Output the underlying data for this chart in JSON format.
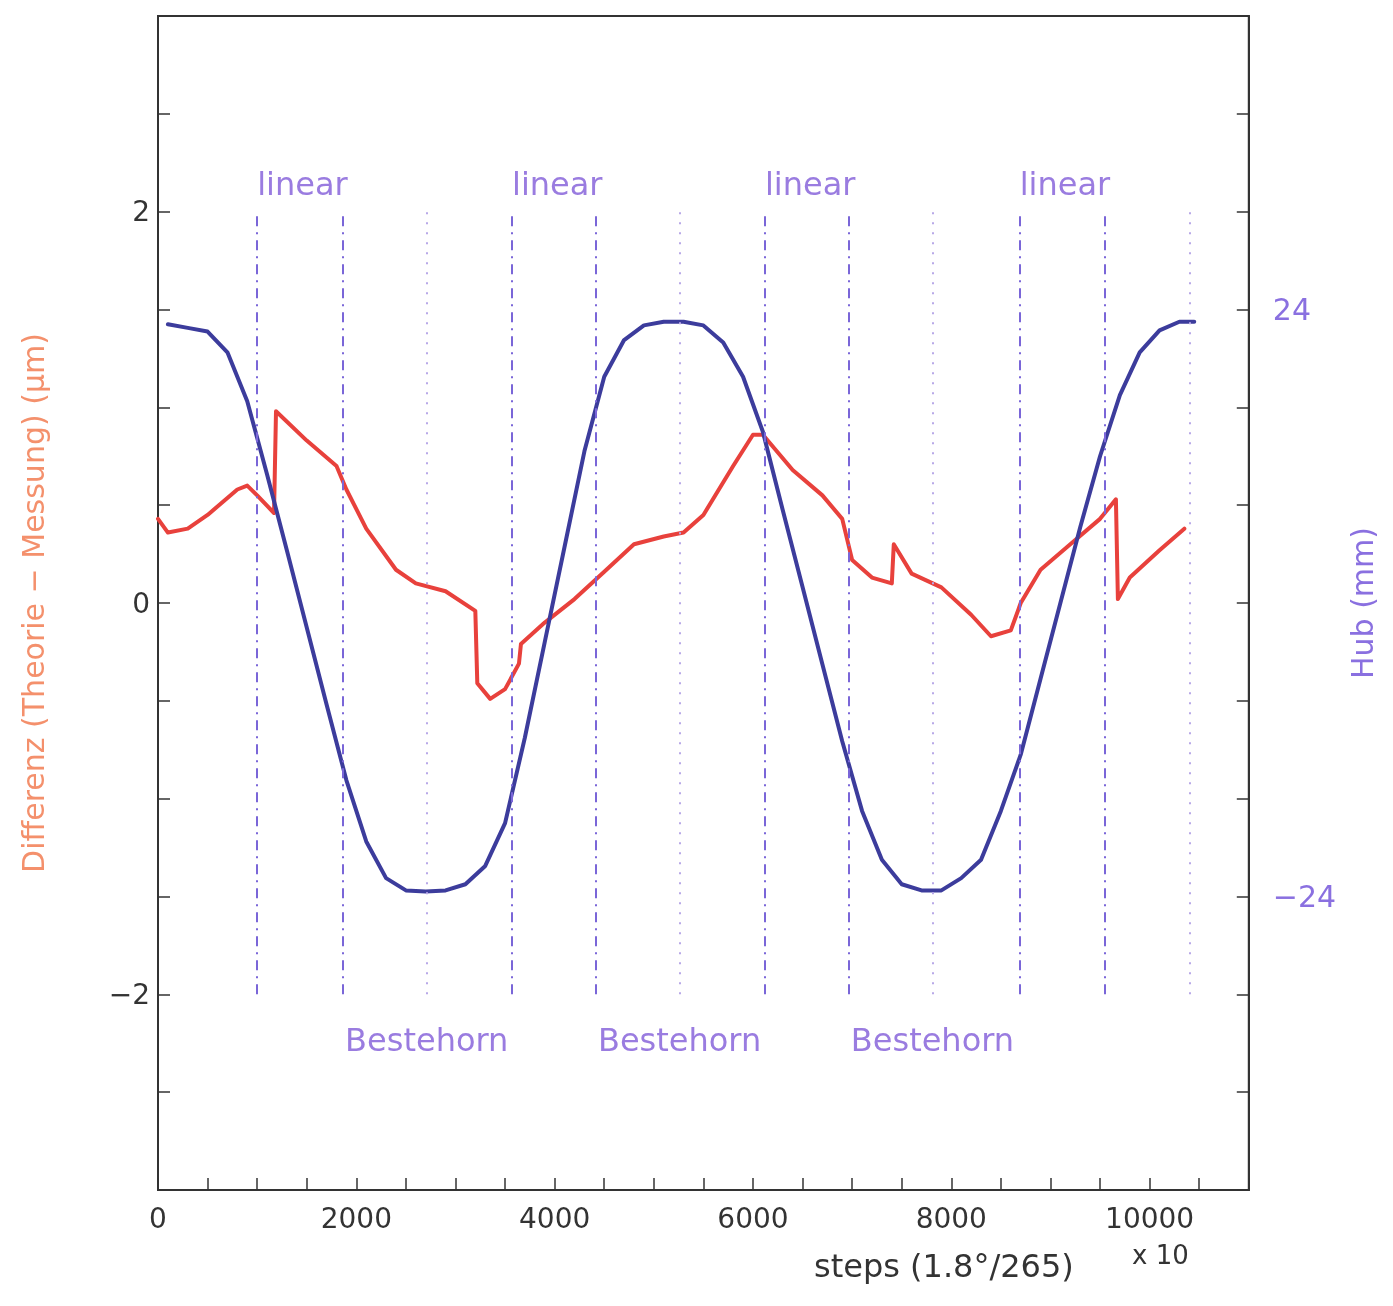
{
  "chart_data": {
    "type": "line",
    "xlabel": "steps (1.8°/265)",
    "ylabel": "Differenz (Theorie − Messung) (μm)",
    "y2label": "Hub (mm)",
    "xlim": [
      0,
      11000
    ],
    "xticks": [
      0,
      {
        "value": 500,
        "label": null
      },
      {
        "value": 1000,
        "label": null
      },
      {
        "value": 1500,
        "label": null
      },
      2000,
      {
        "value": 2500,
        "label": null
      },
      {
        "value": 3000,
        "label": null
      },
      {
        "value": 3500,
        "label": null
      },
      4000,
      {
        "value": 4500,
        "label": null
      },
      {
        "value": 5000,
        "label": null
      },
      {
        "value": 5500,
        "label": null
      },
      6000,
      {
        "value": 6500,
        "label": null
      },
      {
        "value": 7000,
        "label": null
      },
      {
        "value": 7500,
        "label": null
      },
      8000,
      {
        "value": 8500,
        "label": null
      },
      {
        "value": 9000,
        "label": null
      },
      {
        "value": 9500,
        "label": null
      },
      10000,
      {
        "value": 10500,
        "label": null
      },
      {
        "value": 11000,
        "label": null
      }
    ],
    "ylim": [
      -3,
      3
    ],
    "yticks": [
      {
        "value": -3,
        "label": null
      },
      {
        "value": -2.5,
        "label": null
      },
      {
        "value": -2,
        "label": "−2"
      },
      {
        "value": -1.5,
        "label": null
      },
      {
        "value": -1,
        "label": null
      },
      {
        "value": -0.5,
        "label": null
      },
      0,
      {
        "value": 0.5,
        "label": null
      },
      {
        "value": 1,
        "label": null
      },
      {
        "value": 1.5,
        "label": null
      },
      2,
      {
        "value": 2.5,
        "label": null
      },
      {
        "value": 3,
        "label": null
      }
    ],
    "y2lim": [
      -48,
      48
    ],
    "y2ticks": [
      {
        "value": -48,
        "label": null
      },
      {
        "value": -40,
        "label": null
      },
      {
        "value": -32,
        "label": null
      },
      {
        "value": -24,
        "label": "−24"
      },
      {
        "value": -16,
        "label": null
      },
      {
        "value": -8,
        "label": null
      },
      {
        "value": 0,
        "label": null
      },
      {
        "value": 8,
        "label": null
      },
      {
        "value": 16,
        "label": null
      },
      24,
      {
        "value": 32,
        "label": null
      },
      {
        "value": 40,
        "label": null
      },
      {
        "value": 48,
        "label": null
      }
    ],
    "grid": false,
    "marker": "none",
    "line_style": "solid",
    "series": [
      {
        "color": "#e8413c",
        "x": [
          0,
          100,
          300,
          500,
          800,
          900,
          1000,
          1170,
          1190,
          1500,
          1800,
          1900,
          2100,
          2400,
          2600,
          2900,
          3200,
          3220,
          3350,
          3500,
          3640,
          3660,
          3900,
          4200,
          4500,
          4800,
          5100,
          5300,
          5500,
          5800,
          6000,
          6100,
          6400,
          6700,
          6900,
          7000,
          7200,
          7400,
          7420,
          7600,
          7900,
          8200,
          8400,
          8600,
          8700,
          8900,
          9200,
          9500,
          9660,
          9680,
          9800,
          10100,
          10350
        ],
        "values": [
          0.43,
          0.36,
          0.38,
          0.45,
          0.58,
          0.6,
          0.55,
          0.46,
          0.98,
          0.83,
          0.7,
          0.58,
          0.38,
          0.17,
          0.1,
          0.06,
          -0.04,
          -0.41,
          -0.49,
          -0.44,
          -0.31,
          -0.21,
          -0.1,
          0.02,
          0.16,
          0.3,
          0.34,
          0.36,
          0.45,
          0.7,
          0.86,
          0.86,
          0.68,
          0.55,
          0.43,
          0.22,
          0.13,
          0.1,
          0.3,
          0.15,
          0.08,
          -0.06,
          -0.17,
          -0.14,
          0,
          0.17,
          0.3,
          0.43,
          0.53,
          0.02,
          0.13,
          0.27,
          0.38
        ]
      },
      {
        "color": "#3c3c9c",
        "axis": "y2",
        "x": [
          100,
          300,
          500,
          700,
          900,
          1100,
          1300,
          1500,
          1700,
          1900,
          2100,
          2300,
          2500,
          2700,
          2900,
          3100,
          3300,
          3500,
          3700,
          3900,
          4100,
          4300,
          4500,
          4700,
          4900,
          5100,
          5300,
          5500,
          5700,
          5900,
          6100,
          6300,
          6500,
          6700,
          6900,
          7100,
          7300,
          7500,
          7700,
          7900,
          8100,
          8300,
          8500,
          8700,
          8900,
          9100,
          9300,
          9500,
          9700,
          9900,
          10100,
          10300,
          10450
        ],
        "values": [
          22.8,
          22.5,
          22.2,
          20.5,
          16.5,
          10.5,
          4.3,
          -2,
          -8.3,
          -14.5,
          -19.5,
          -22.5,
          -23.5,
          -23.6,
          -23.5,
          -23,
          -21.5,
          -18,
          -11,
          -3.2,
          4.6,
          12.4,
          18.5,
          21.5,
          22.7,
          23,
          23,
          22.7,
          21.3,
          18.5,
          14,
          7.6,
          1.3,
          -5,
          -11.3,
          -17,
          -21,
          -23,
          -23.5,
          -23.5,
          -22.5,
          -21,
          -17,
          -12.4,
          -6.2,
          0,
          6.2,
          12,
          17,
          20.5,
          22.3,
          23,
          23
        ]
      }
    ],
    "ref_lines": [
      {
        "axis": "x",
        "value": 1000,
        "line_style": "dashed",
        "color": "#7a66d8"
      },
      {
        "axis": "x",
        "value": 1860,
        "line_style": "dashed",
        "color": "#7a66d8"
      },
      {
        "axis": "x",
        "value": 2710,
        "line_style": "dotted",
        "color": "#b8a8e8"
      },
      {
        "axis": "x",
        "value": 3570,
        "line_style": "dashed",
        "color": "#7a66d8"
      },
      {
        "axis": "x",
        "value": 4410,
        "line_style": "dashed",
        "color": "#7a66d8"
      },
      {
        "axis": "x",
        "value": 5260,
        "line_style": "dotted",
        "color": "#b8a8e8"
      },
      {
        "axis": "x",
        "value": 6120,
        "line_style": "dashed",
        "color": "#7a66d8"
      },
      {
        "axis": "x",
        "value": 6970,
        "line_style": "dashed",
        "color": "#7a66d8"
      },
      {
        "axis": "x",
        "value": 7810,
        "line_style": "dotted",
        "color": "#b8a8e8"
      },
      {
        "axis": "x",
        "value": 8690,
        "line_style": "dashed",
        "color": "#7a66d8"
      },
      {
        "axis": "x",
        "value": 9550,
        "line_style": "dashed",
        "color": "#7a66d8"
      },
      {
        "axis": "x",
        "value": 10400,
        "line_style": "dotted",
        "color": "#b8a8e8"
      }
    ],
    "annotations": [
      "linear",
      "linear",
      "linear",
      "linear",
      "Bestehorn",
      "Bestehorn",
      "Bestehorn",
      "x 10"
    ]
  }
}
